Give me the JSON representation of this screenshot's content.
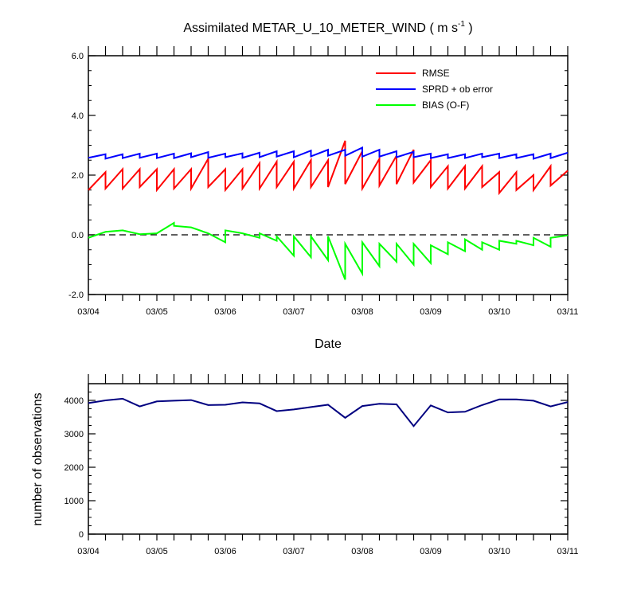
{
  "chart_data": [
    {
      "type": "line",
      "title": "Assimilated METAR_U_10_METER_WIND",
      "title_units": "( m s",
      "title_units_exp": "-1",
      "title_units_close": " )",
      "xlabel": "Date",
      "ylabel": "",
      "xlim": [
        0,
        7
      ],
      "ylim": [
        -2.0,
        6.0
      ],
      "yticks": [
        6.0,
        4.0,
        2.0,
        0.0,
        -2.0
      ],
      "ytick_labels": [
        "6.0",
        "4.0",
        "2.0",
        "0.0",
        "-2.0"
      ],
      "xticks": [
        0,
        1,
        2,
        3,
        4,
        5,
        6,
        7
      ],
      "xtick_labels": [
        "03/04",
        "03/05",
        "03/06",
        "03/07",
        "03/08",
        "03/09",
        "03/10",
        "03/11"
      ],
      "zero_line": true,
      "grid": false,
      "legend_position": "top-right",
      "series": [
        {
          "name": "RMSE",
          "color": "#ff0000",
          "x": [
            0,
            0.25,
            0.25,
            0.5,
            0.5,
            0.75,
            0.75,
            1,
            1,
            1.25,
            1.25,
            1.5,
            1.5,
            1.75,
            1.75,
            2,
            2,
            2.25,
            2.25,
            2.5,
            2.5,
            2.75,
            2.75,
            3,
            3,
            3.25,
            3.25,
            3.5,
            3.5,
            3.75,
            3.75,
            4,
            4,
            4.25,
            4.25,
            4.5,
            4.5,
            4.75,
            4.75,
            5,
            5,
            5.25,
            5.25,
            5.5,
            5.5,
            5.75,
            5.75,
            6,
            6,
            6.25,
            6.25,
            6.5,
            6.5,
            6.75,
            6.75,
            7
          ],
          "values": [
            1.5,
            2.1,
            1.55,
            2.2,
            1.55,
            2.2,
            1.6,
            2.2,
            1.5,
            2.2,
            1.55,
            2.2,
            1.55,
            2.55,
            1.6,
            2.2,
            1.5,
            2.2,
            1.55,
            2.4,
            1.55,
            2.45,
            1.6,
            2.45,
            1.55,
            2.5,
            1.6,
            2.5,
            1.6,
            3.15,
            1.7,
            2.8,
            1.55,
            2.55,
            1.65,
            2.65,
            1.7,
            2.85,
            1.75,
            2.5,
            1.6,
            2.3,
            1.55,
            2.3,
            1.55,
            2.3,
            1.6,
            2.1,
            1.4,
            2.1,
            1.5,
            2.0,
            1.5,
            2.3,
            1.65,
            2.15
          ]
        },
        {
          "name": "SPRD + ob error",
          "color": "#0000ff",
          "x": [
            0,
            0.25,
            0.25,
            0.5,
            0.5,
            0.75,
            0.75,
            1,
            1,
            1.25,
            1.25,
            1.5,
            1.5,
            1.75,
            1.75,
            2,
            2,
            2.25,
            2.25,
            2.5,
            2.5,
            2.75,
            2.75,
            3,
            3,
            3.25,
            3.25,
            3.5,
            3.5,
            3.75,
            3.75,
            4,
            4,
            4.25,
            4.25,
            4.5,
            4.5,
            4.75,
            4.75,
            5,
            5,
            5.25,
            5.25,
            5.5,
            5.5,
            5.75,
            5.75,
            6,
            6,
            6.25,
            6.25,
            6.5,
            6.5,
            6.75,
            6.75,
            7
          ],
          "values": [
            2.58,
            2.7,
            2.55,
            2.7,
            2.57,
            2.72,
            2.58,
            2.72,
            2.57,
            2.72,
            2.57,
            2.73,
            2.6,
            2.77,
            2.58,
            2.72,
            2.6,
            2.73,
            2.58,
            2.75,
            2.6,
            2.8,
            2.62,
            2.8,
            2.6,
            2.82,
            2.63,
            2.85,
            2.65,
            2.85,
            2.65,
            2.92,
            2.62,
            2.85,
            2.62,
            2.8,
            2.6,
            2.78,
            2.6,
            2.72,
            2.57,
            2.7,
            2.57,
            2.7,
            2.57,
            2.72,
            2.6,
            2.72,
            2.57,
            2.7,
            2.57,
            2.7,
            2.55,
            2.72,
            2.57,
            2.75
          ]
        },
        {
          "name": "BIAS (O-F)",
          "color": "#00ff00",
          "x": [
            0,
            0.25,
            0.5,
            0.75,
            1.0,
            1.25,
            1.25,
            1.5,
            1.75,
            2.0,
            2.0,
            2.25,
            2.5,
            2.5,
            2.75,
            2.75,
            3.0,
            3.0,
            3.25,
            3.25,
            3.5,
            3.5,
            3.75,
            3.75,
            4.0,
            4.0,
            4.25,
            4.25,
            4.5,
            4.5,
            4.75,
            4.75,
            5.0,
            5.0,
            5.25,
            5.25,
            5.5,
            5.5,
            5.75,
            5.75,
            6.0,
            6.0,
            6.25,
            6.25,
            6.5,
            6.5,
            6.75,
            6.75,
            7.0
          ],
          "values": [
            -0.1,
            0.1,
            0.15,
            0.02,
            0.05,
            0.4,
            0.3,
            0.25,
            0.05,
            -0.25,
            0.15,
            0.05,
            -0.1,
            0.05,
            -0.2,
            -0.05,
            -0.7,
            -0.05,
            -0.75,
            -0.05,
            -0.85,
            -0.05,
            -1.5,
            -0.3,
            -1.3,
            -0.25,
            -1.05,
            -0.3,
            -0.9,
            -0.3,
            -1.0,
            -0.3,
            -0.95,
            -0.35,
            -0.65,
            -0.25,
            -0.55,
            -0.15,
            -0.5,
            -0.25,
            -0.5,
            -0.2,
            -0.3,
            -0.2,
            -0.35,
            -0.1,
            -0.4,
            -0.1,
            -0.02
          ]
        }
      ]
    },
    {
      "type": "line",
      "title": "",
      "xlabel": "",
      "ylabel": "number of observations",
      "xlim": [
        0,
        7
      ],
      "ylim": [
        0,
        4500
      ],
      "yticks": [
        0,
        1000,
        2000,
        3000,
        4000
      ],
      "ytick_labels": [
        "0",
        "1000",
        "2000",
        "3000",
        "4000"
      ],
      "xticks": [
        0,
        1,
        2,
        3,
        4,
        5,
        6,
        7
      ],
      "xtick_labels": [
        "03/04",
        "03/05",
        "03/06",
        "03/07",
        "03/08",
        "03/09",
        "03/10",
        "03/11"
      ],
      "grid": false,
      "series": [
        {
          "color": "#000080",
          "x": [
            0,
            0.25,
            0.5,
            0.75,
            1.0,
            1.25,
            1.5,
            1.75,
            2.0,
            2.25,
            2.5,
            2.75,
            3.0,
            3.25,
            3.5,
            3.75,
            4.0,
            4.25,
            4.5,
            4.75,
            5.0,
            5.25,
            5.5,
            5.75,
            6.0,
            6.25,
            6.5,
            6.75,
            7.0
          ],
          "values": [
            3920,
            4000,
            4050,
            3820,
            3970,
            3990,
            4010,
            3860,
            3870,
            3940,
            3910,
            3680,
            3730,
            3800,
            3870,
            3480,
            3830,
            3900,
            3880,
            3230,
            3850,
            3640,
            3660,
            3860,
            4030,
            4030,
            3990,
            3820,
            3950
          ]
        }
      ]
    }
  ]
}
